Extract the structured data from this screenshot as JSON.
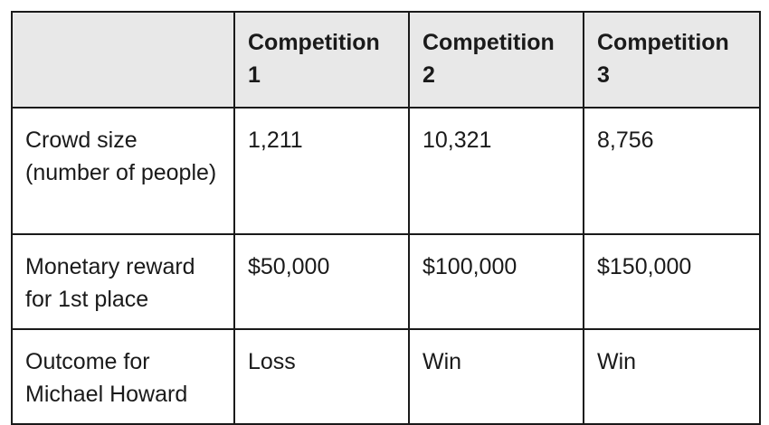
{
  "table": {
    "headers": [
      "",
      "Competition 1",
      "Competition 2",
      "Competition 3"
    ],
    "rows": [
      {
        "label": "Crowd size (number of people)",
        "cells": [
          "1,211",
          "10,321",
          "8,756"
        ]
      },
      {
        "label": "Monetary reward for 1st place",
        "cells": [
          "$50,000",
          "$100,000",
          "$150,000"
        ]
      },
      {
        "label": "Outcome for Michael Howard",
        "cells": [
          "Loss",
          "Win",
          "Win"
        ]
      }
    ]
  },
  "colors": {
    "header_background": "#e8e8e8",
    "border": "#1a1a1a",
    "text": "#1a1a1a"
  }
}
